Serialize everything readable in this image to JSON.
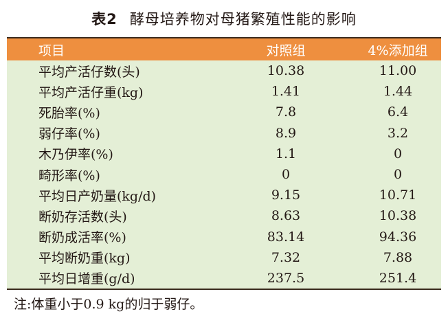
{
  "header": {
    "label": "表2",
    "title": "酵母培养物对母猪繁殖性能的影响"
  },
  "table": {
    "columns": [
      "项目",
      "对照组",
      "4%添加组"
    ],
    "rows": [
      [
        "平均产活仔数(头)",
        "10.38",
        "11.00"
      ],
      [
        "平均产活仔重(kg)",
        "1.41",
        "1.44"
      ],
      [
        "死胎率(%)",
        "7.8",
        "6.4"
      ],
      [
        "弱仔率(%)",
        "8.9",
        "3.2"
      ],
      [
        "木乃伊率(%)",
        "1.1",
        "0"
      ],
      [
        "畸形率(%)",
        "0",
        "0"
      ],
      [
        "平均日产奶量(kg/d)",
        "9.15",
        "10.71"
      ],
      [
        "断奶存活数(头)",
        "8.63",
        "10.38"
      ],
      [
        "断奶成活率(%)",
        "83.14",
        "94.36"
      ],
      [
        "平均断奶重(kg)",
        "7.32",
        "7.88"
      ],
      [
        "平均日增重(g/d)",
        "237.5",
        "251.4"
      ]
    ]
  },
  "note": "注:体重小于0.9 kg的归于弱仔。"
}
